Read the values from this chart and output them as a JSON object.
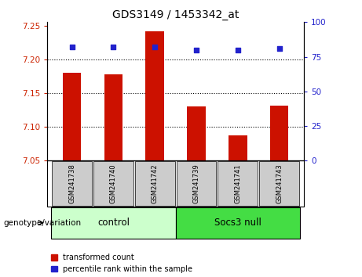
{
  "title": "GDS3149 / 1453342_at",
  "samples": [
    "GSM241738",
    "GSM241740",
    "GSM241742",
    "GSM241739",
    "GSM241741",
    "GSM241743"
  ],
  "bar_values": [
    7.18,
    7.178,
    7.242,
    7.13,
    7.088,
    7.132
  ],
  "percentile_values": [
    82,
    82,
    82,
    80,
    80,
    81
  ],
  "bar_bottom": 7.05,
  "ylim_left": [
    7.05,
    7.255
  ],
  "ylim_right": [
    0,
    100
  ],
  "yticks_left": [
    7.05,
    7.1,
    7.15,
    7.2,
    7.25
  ],
  "yticks_right": [
    0,
    25,
    50,
    75,
    100
  ],
  "bar_color": "#cc1100",
  "dot_color": "#2222cc",
  "group1_label": "control",
  "group2_label": "Socs3 null",
  "group1_color": "#ccffcc",
  "group2_color": "#44dd44",
  "group_label_text": "genotype/variation",
  "legend_bar_label": "transformed count",
  "legend_dot_label": "percentile rank within the sample",
  "tick_label_bg": "#cccccc",
  "left_tick_color": "#cc2200",
  "right_tick_color": "#2222cc",
  "gridline_color": "black",
  "gridline_style": "dotted"
}
